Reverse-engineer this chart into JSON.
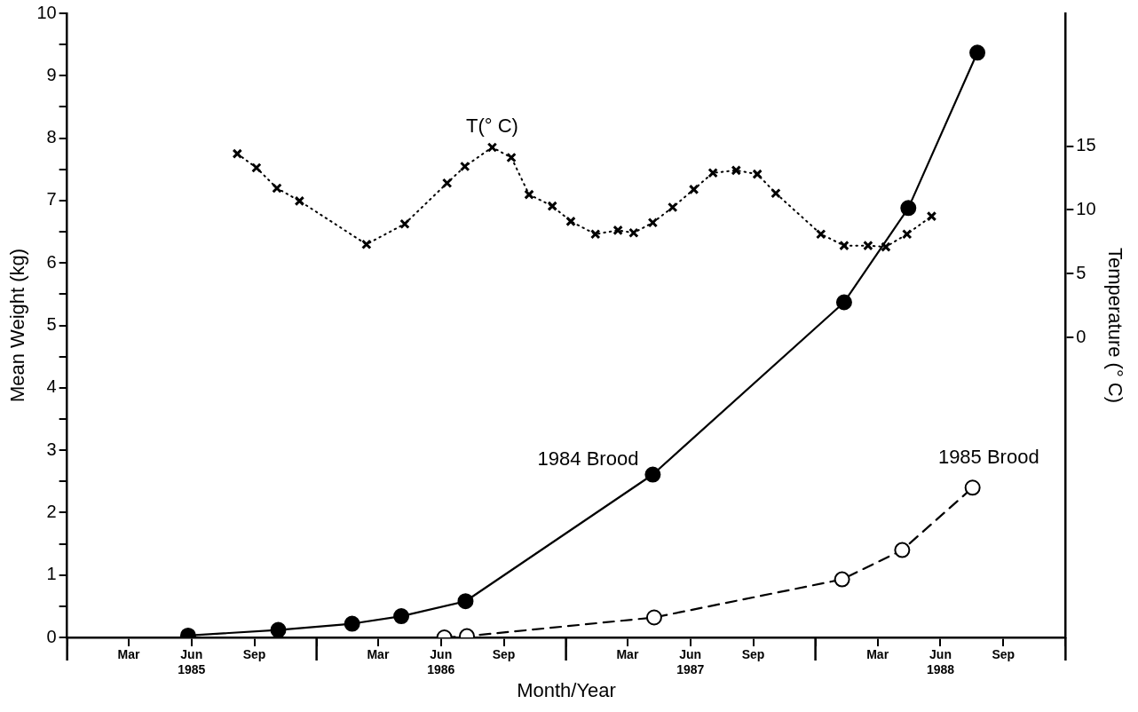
{
  "chart_data": {
    "type": "line",
    "xlabel": "Month/Year",
    "ylabel": "Mean Weight (kg)",
    "y2label": "Temperature (° C)",
    "xlim": [
      "1984-12-01",
      "1988-12-01"
    ],
    "xticks": [
      {
        "value": "1984-12-01",
        "label": null
      },
      {
        "value": "1985-03-01",
        "label": "Mar"
      },
      {
        "value": "1985-06-01",
        "label": "Jun\n1985"
      },
      {
        "value": "1985-09-01",
        "label": "Sep"
      },
      {
        "value": "1985-12-01",
        "label": null
      },
      {
        "value": "1986-03-01",
        "label": "Mar"
      },
      {
        "value": "1986-06-01",
        "label": "Jun\n1986"
      },
      {
        "value": "1986-09-01",
        "label": "Sep"
      },
      {
        "value": "1986-12-01",
        "label": null
      },
      {
        "value": "1987-03-01",
        "label": "Mar"
      },
      {
        "value": "1987-06-01",
        "label": "Jun\n1987"
      },
      {
        "value": "1987-09-01",
        "label": "Sep"
      },
      {
        "value": "1987-12-01",
        "label": null
      },
      {
        "value": "1988-03-01",
        "label": "Mar"
      },
      {
        "value": "1988-06-01",
        "label": "Jun\n1988"
      },
      {
        "value": "1988-09-01",
        "label": "Sep"
      },
      {
        "value": "1988-12-01",
        "label": null
      }
    ],
    "ylim": [
      0,
      10
    ],
    "yticks": [
      0,
      {
        "value": 0.5,
        "label": null
      },
      1,
      {
        "value": 1.5,
        "label": null
      },
      2,
      {
        "value": 2.5,
        "label": null
      },
      3,
      {
        "value": 3.5,
        "label": null
      },
      4,
      {
        "value": 4.5,
        "label": null
      },
      5,
      {
        "value": 5.5,
        "label": null
      },
      6,
      {
        "value": 6.5,
        "label": null
      },
      7,
      {
        "value": 7.5,
        "label": null
      },
      8,
      {
        "value": 8.5,
        "label": null
      },
      9,
      {
        "value": 9.5,
        "label": null
      },
      10
    ],
    "y2lim": [
      -23.5,
      25.4
    ],
    "y2ticks": [
      0,
      5,
      10,
      15
    ],
    "grid": false,
    "legend": false,
    "series": [
      {
        "name": "1984 Brood",
        "color": "#000000",
        "marker": "circle",
        "line_style": "solid",
        "x": [
          "1985-05-27",
          "1985-10-06",
          "1986-01-22",
          "1986-04-04",
          "1986-07-07",
          "1987-04-07",
          "1988-01-12",
          "1988-04-15",
          "1988-07-25"
        ],
        "values": [
          0.03,
          0.12,
          0.22,
          0.34,
          0.58,
          2.61,
          5.37,
          6.88,
          9.37
        ]
      },
      {
        "name": "1985 Brood",
        "color": "#000000",
        "marker": "circle",
        "line_style": "dashed",
        "x": [
          "1986-06-06",
          "1986-07-09",
          "1987-04-09",
          "1988-01-09",
          "1988-04-06",
          "1988-07-18"
        ],
        "values": [
          0,
          0.02,
          0.32,
          0.93,
          1.4,
          2.4
        ]
      },
      {
        "name": "T(° C)",
        "color": "#000000",
        "marker": "cross",
        "line_style": "dotted",
        "axis": "y2",
        "x": [
          "1985-08-07",
          "1985-09-04",
          "1985-10-04",
          "1985-11-06",
          "1986-02-12",
          "1986-04-09",
          "1986-06-10",
          "1986-07-06",
          "1986-08-15",
          "1986-09-12",
          "1986-10-08",
          "1986-11-11",
          "1986-12-08",
          "1987-01-13",
          "1987-02-15",
          "1987-03-10",
          "1987-04-07",
          "1987-05-06",
          "1987-06-06",
          "1987-07-04",
          "1987-08-07",
          "1987-09-07",
          "1987-10-04",
          "1987-12-09",
          "1988-01-12",
          "1988-02-16",
          "1988-03-13",
          "1988-04-13",
          "1988-05-19"
        ],
        "values": [
          14.4,
          13.3,
          11.7,
          10.7,
          7.3,
          8.9,
          12.1,
          13.4,
          14.9,
          14.1,
          11.2,
          10.3,
          9.1,
          8.1,
          8.4,
          8.2,
          9.0,
          10.2,
          11.6,
          12.9,
          13.1,
          12.8,
          11.3,
          8.1,
          7.2,
          7.2,
          7.1,
          8.1,
          9.5
        ]
      }
    ]
  }
}
